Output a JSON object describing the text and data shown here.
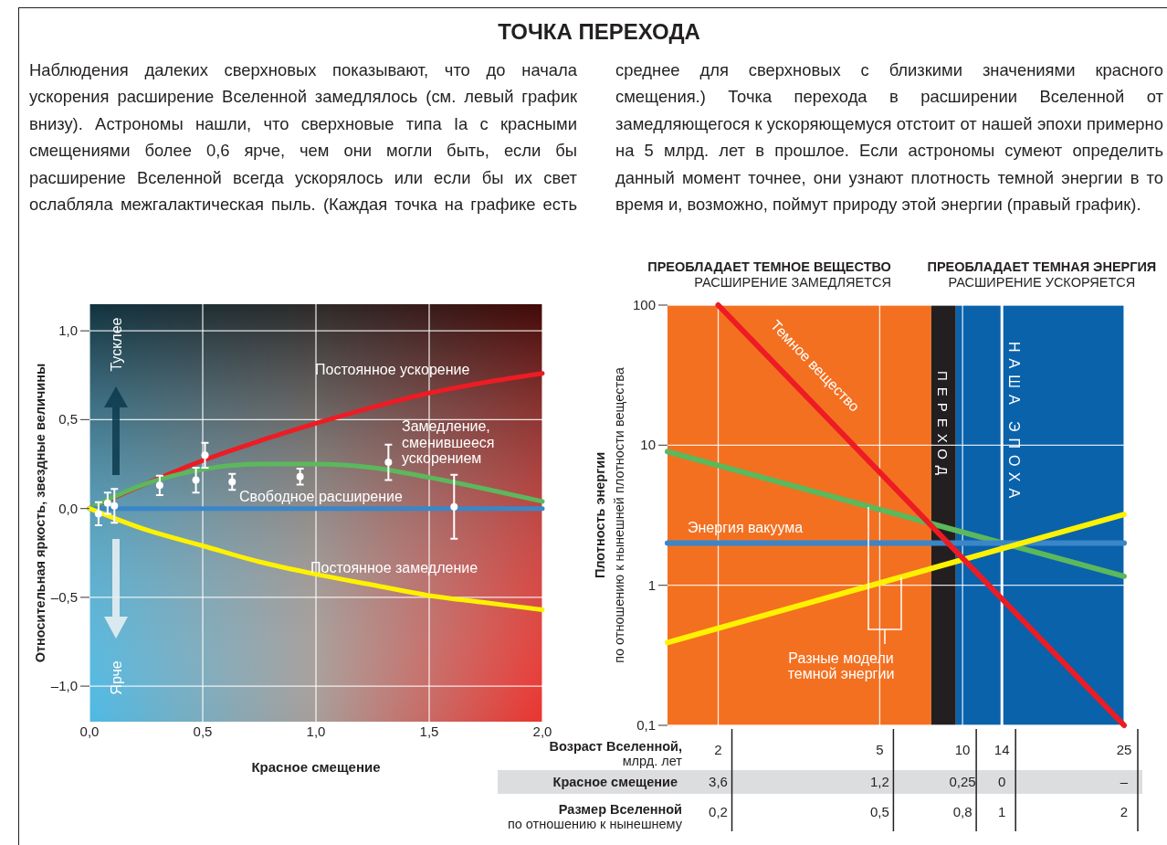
{
  "chart_data": [
    {
      "type": "line",
      "title": "ТОЧКА ПЕРЕХОДА",
      "subtitle": "Наблюдения далеких сверхновых показывают, что до начала ускорения расширение Вселенной замедлялось (см. левый график внизу). Астрономы нашли, что сверхновые типа Ia с красными смещениями более 0,6 ярче, чем они могли быть, если бы расширение Вселенной всегда ускорялось или если бы их свет ослабляла межгалактическая пыль. (Каждая точка на графике есть среднее для сверхновых с близкими значениями красного смещения.) Точка перехода в расширении Вселенной от замедляющегося к ускоряющемуся отстоит от нашей эпохи примерно на 5 млрд. лет в прошлое. Если астрономы сумеют определить данный момент точнее, они узнают плотность темной энергии в то время и, возможно, поймут природу этой энергии (правый график).",
      "xlabel": "Красное смещение",
      "ylabel": "Относительная яркость, звездные величины",
      "annotations": [
        "Тусклее",
        "Ярче"
      ],
      "xlim": [
        0,
        2
      ],
      "ylim": [
        -1.2,
        1.15
      ],
      "xticks": [
        {
          "value": 0,
          "label": "0,0"
        },
        {
          "value": 0.5,
          "label": "0,5"
        },
        {
          "value": 1,
          "label": "1,0"
        },
        {
          "value": 1.5,
          "label": "1,5"
        },
        {
          "value": 2,
          "label": "2,0"
        }
      ],
      "yticks": [
        {
          "value": -1,
          "label": "–1,0"
        },
        {
          "value": -0.5,
          "label": "–0,5"
        },
        {
          "value": 0,
          "label": "0,0"
        },
        {
          "value": 0.5,
          "label": "0,5"
        },
        {
          "value": 1,
          "label": "1,0"
        }
      ],
      "grid": true,
      "series": [
        {
          "name": "Постоянное ускорение",
          "color": "#ed1c24",
          "x": [
            0,
            0.25,
            0.5,
            0.75,
            1,
            1.25,
            1.5,
            1.75,
            2
          ],
          "values": [
            0,
            0.14,
            0.27,
            0.38,
            0.48,
            0.57,
            0.65,
            0.71,
            0.76
          ]
        },
        {
          "name": "Замедление,\nсменившееся\nускорением",
          "color": "#5cb85c",
          "x": [
            0,
            0.25,
            0.5,
            0.75,
            1,
            1.25,
            1.5,
            1.75,
            2
          ],
          "values": [
            0,
            0.14,
            0.22,
            0.25,
            0.25,
            0.23,
            0.175,
            0.11,
            0.04
          ]
        },
        {
          "name": "Свободное расширение",
          "color": "#3a86c8",
          "x": [
            0,
            2
          ],
          "values": [
            0,
            0
          ]
        },
        {
          "name": "Постоянное замедление",
          "color": "#fff200",
          "x": [
            0,
            0.25,
            0.5,
            0.75,
            1,
            1.25,
            1.5,
            1.75,
            2
          ],
          "values": [
            0,
            -0.12,
            -0.21,
            -0.3,
            -0.37,
            -0.43,
            -0.49,
            -0.53,
            -0.57
          ]
        },
        {
          "type": "scatter",
          "color": "#ffffff",
          "marker": "circle",
          "x": [
            0.04,
            0.08,
            0.11,
            0.31,
            0.47,
            0.51,
            0.63,
            0.93,
            1.32,
            1.61
          ],
          "values": [
            -0.03,
            0.03,
            0.015,
            0.13,
            0.16,
            0.3,
            0.15,
            0.18,
            0.26,
            0.01
          ],
          "errors": [
            0.065,
            0.06,
            0.095,
            0.055,
            0.07,
            0.07,
            0.045,
            0.045,
            0.1,
            0.18
          ]
        }
      ]
    },
    {
      "type": "line",
      "ylabel": "Плотность энергии\nпо отношению к нынешней плотности вещества",
      "xlabel": "Размер Вселенной\nпо отношению к нынешнему",
      "annotations": [
        "Разные модели\nтемной энергии",
        "Возраст Вселенной,\nмлрд. лет",
        "2",
        "5",
        "10",
        "14",
        "25",
        "Красное смещение",
        "3,6",
        "1,2",
        "0,25",
        "0",
        "–"
      ],
      "log": "xy",
      "xlim": [
        0.15,
        2
      ],
      "ylim": [
        0.1,
        100
      ],
      "xticks": [
        {
          "value": 0.2,
          "label": "0,2"
        },
        {
          "value": 0.5,
          "label": "0,5"
        },
        {
          "value": 0.8,
          "label": "0,8"
        },
        1,
        2
      ],
      "yticks": [
        {
          "value": 0.1,
          "label": "0,1"
        },
        1,
        10,
        100
      ],
      "grid": true,
      "bands": [
        {
          "axis": "x",
          "from": 0.15,
          "to": 0.67,
          "label": "ПРЕОБЛАДАЕТ ТЕМНОЕ ВЕЩЕСТВО\nРАСШИРЕНИЕ ЗАМЕДЛЯЕТСЯ",
          "color": "#f37021"
        },
        {
          "axis": "x",
          "from": 0.67,
          "to": 0.77,
          "label": "ПЕРЕХОД",
          "color": "#231f20"
        },
        {
          "axis": "x",
          "from": 0.77,
          "to": 2,
          "label": "ПРЕОБЛАДАЕТ ТЕМНАЯ ЭНЕРГИЯ\nРАСШИРЕНИЕ УСКОРЯЕТСЯ",
          "color": "#0a62ab"
        }
      ],
      "ref_lines": [
        {
          "axis": "x",
          "value": 1,
          "label": "НАША ЭПОХА",
          "color": "#ffffff"
        }
      ],
      "series": [
        {
          "color": "#5cb85c",
          "x": [
            0.15,
            2
          ],
          "values": [
            9,
            1.16
          ]
        },
        {
          "name": "Энергия вакуума",
          "color": "#3a86c8",
          "x": [
            0.15,
            2
          ],
          "values": [
            2,
            2
          ]
        },
        {
          "color": "#fff200",
          "x": [
            0.15,
            2
          ],
          "values": [
            0.39,
            3.2
          ]
        },
        {
          "name": "Темное вещество",
          "color": "#ed1c24",
          "x": [
            0.2,
            2
          ],
          "values": [
            100,
            0.1
          ]
        }
      ]
    }
  ]
}
